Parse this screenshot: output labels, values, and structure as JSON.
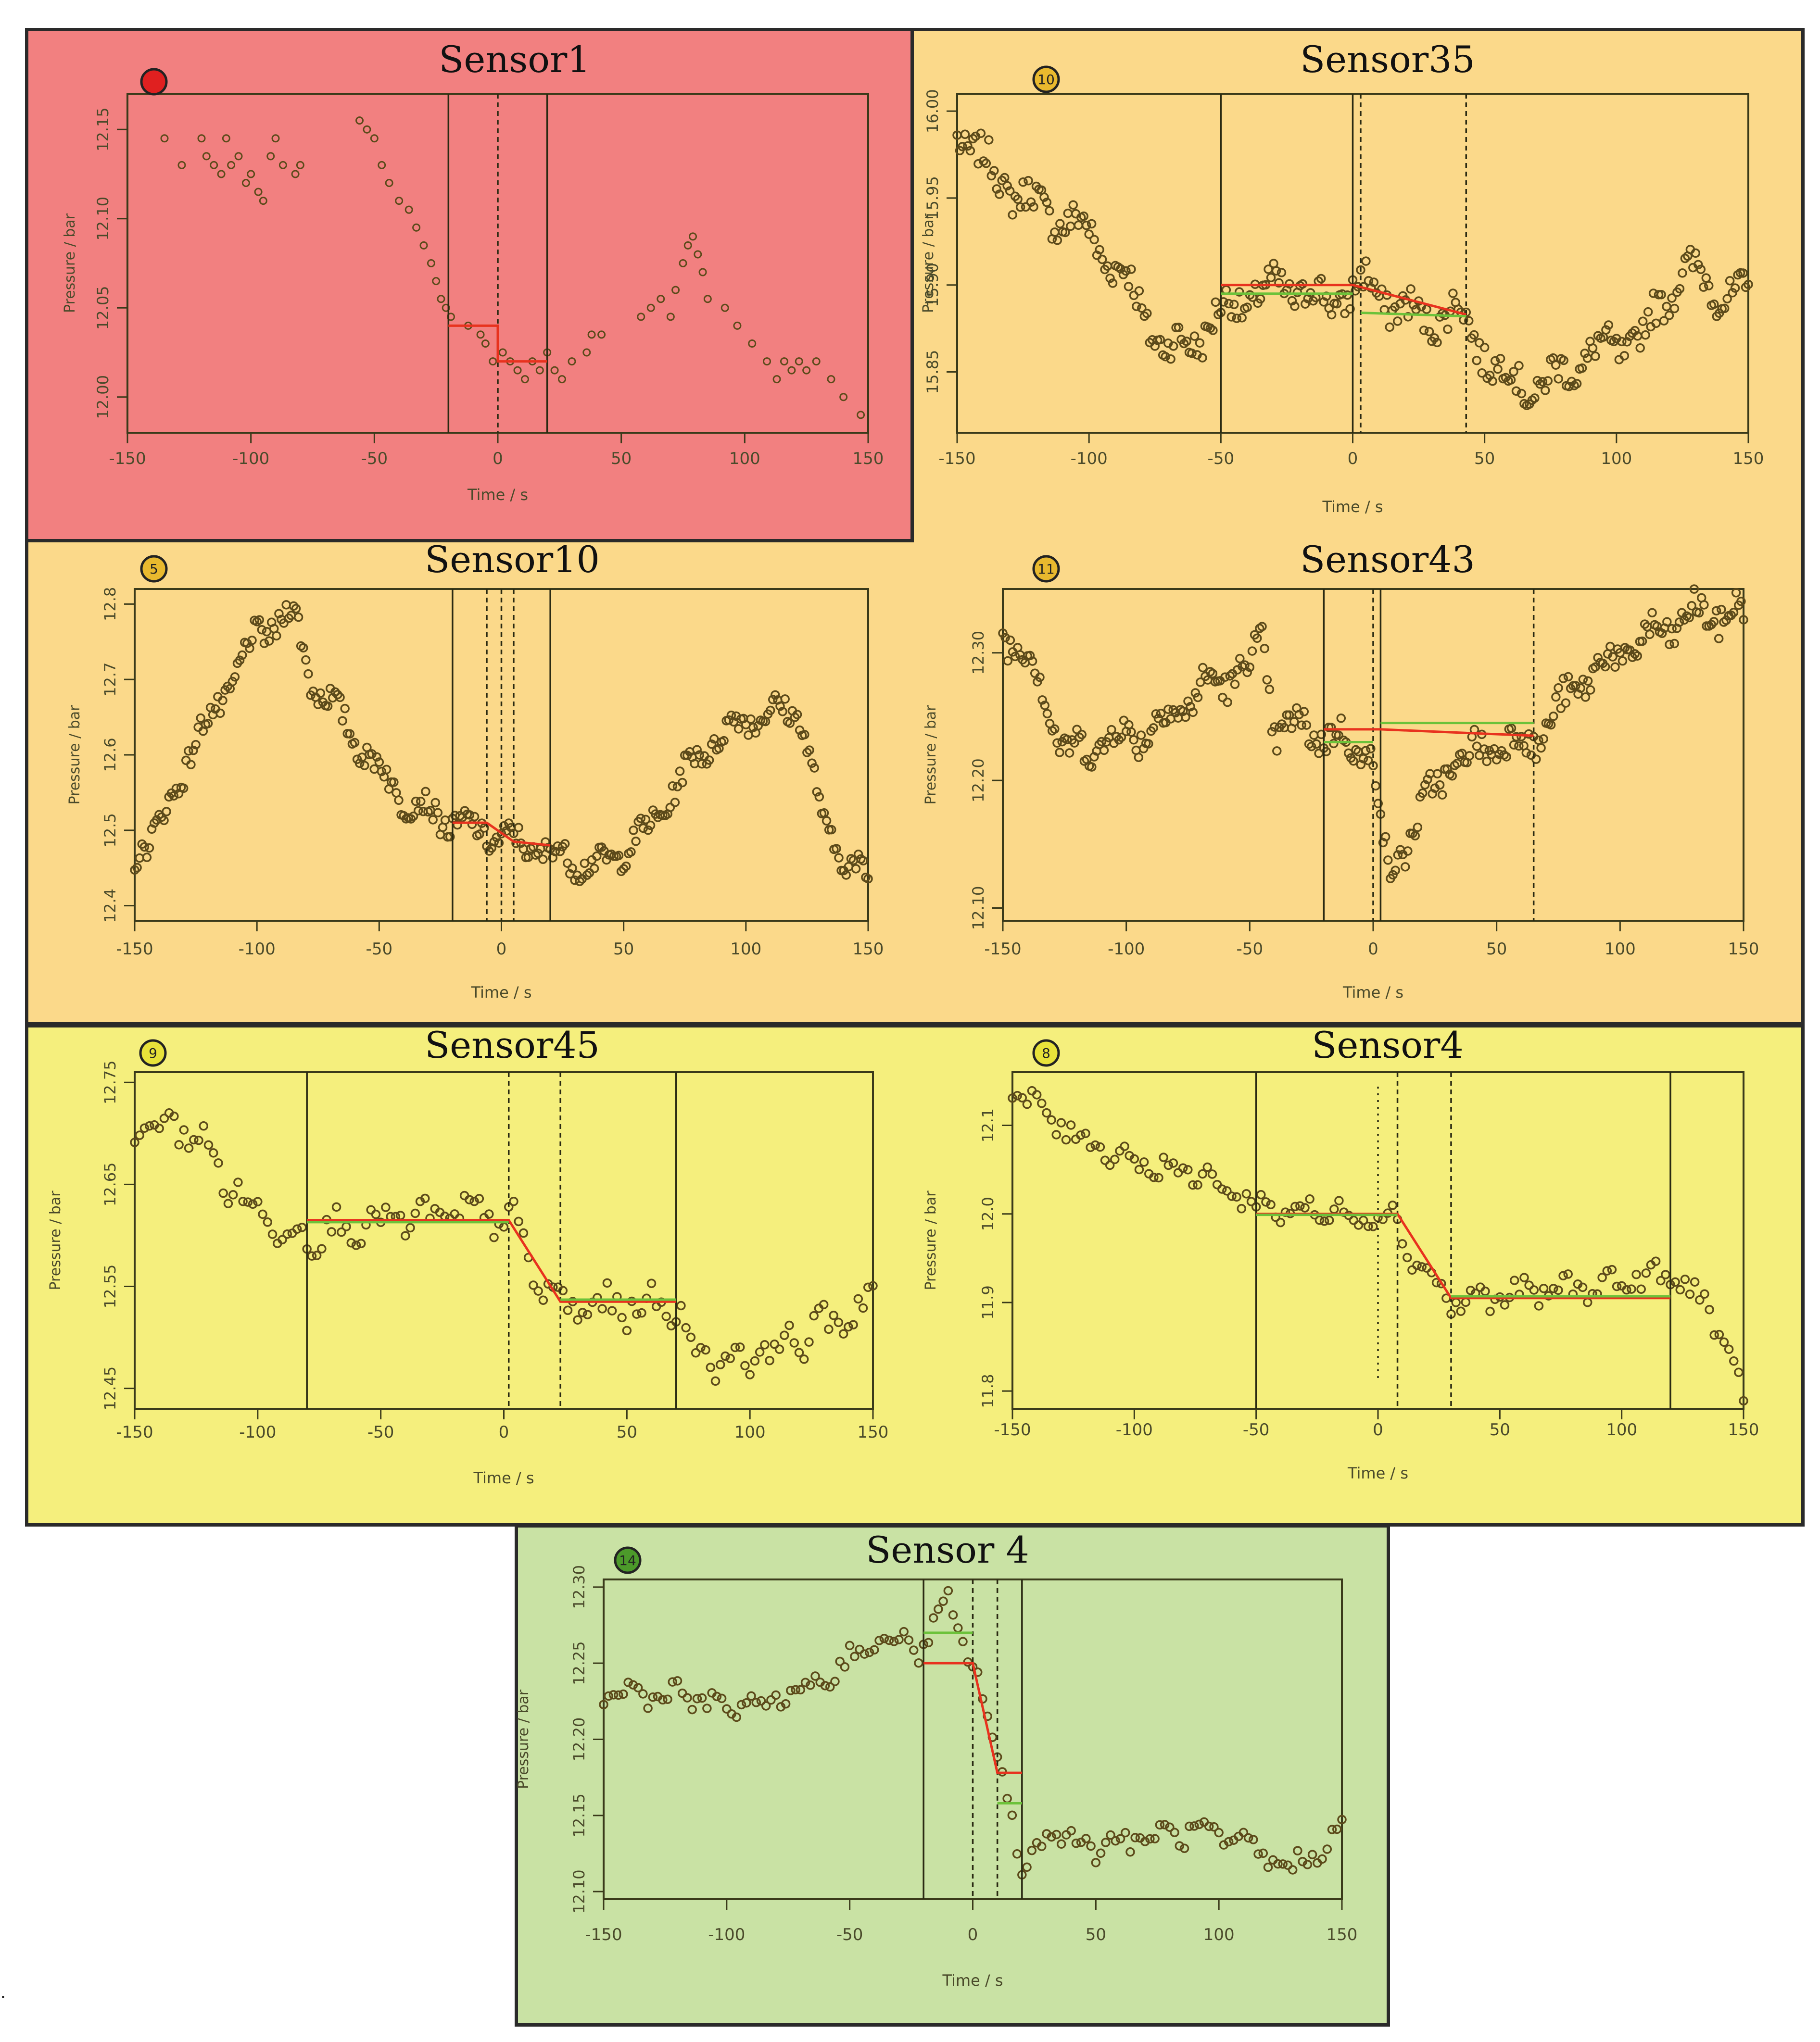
{
  "footnote": ".",
  "colors": {
    "red_zone": "#f28080",
    "orange_zone": "#fbd98a",
    "yellow_zone": "#f5ef7d",
    "green_zone": "#c9e2a4",
    "marker": "#5c4a1a",
    "fit_red": "#e8321e",
    "fit_green": "#6cc23a"
  },
  "chart_data": [
    {
      "type": "scatter",
      "title": "Sensor1",
      "badge": "",
      "badge_color": "#e02020",
      "xlabel": "Time / s",
      "ylabel": "Pressure / bar",
      "xlim": [
        -150,
        150
      ],
      "ylim": [
        11.98,
        12.17
      ],
      "xticks": [
        -150,
        -100,
        -50,
        0,
        50,
        100,
        150
      ],
      "yticks": [
        "12.00",
        "12.05",
        "12.10",
        "12.15"
      ],
      "points": [
        [
          -135,
          12.145
        ],
        [
          -128,
          12.13
        ],
        [
          -120,
          12.145
        ],
        [
          -118,
          12.135
        ],
        [
          -115,
          12.13
        ],
        [
          -112,
          12.125
        ],
        [
          -110,
          12.145
        ],
        [
          -108,
          12.13
        ],
        [
          -105,
          12.135
        ],
        [
          -102,
          12.12
        ],
        [
          -100,
          12.125
        ],
        [
          -97,
          12.115
        ],
        [
          -95,
          12.11
        ],
        [
          -92,
          12.135
        ],
        [
          -90,
          12.145
        ],
        [
          -87,
          12.13
        ],
        [
          -82,
          12.125
        ],
        [
          -80,
          12.13
        ],
        [
          -56,
          12.155
        ],
        [
          -53,
          12.15
        ],
        [
          -50,
          12.145
        ],
        [
          -47,
          12.13
        ],
        [
          -44,
          12.12
        ],
        [
          -40,
          12.11
        ],
        [
          -36,
          12.105
        ],
        [
          -33,
          12.095
        ],
        [
          -30,
          12.085
        ],
        [
          -27,
          12.075
        ],
        [
          -25,
          12.065
        ],
        [
          -23,
          12.055
        ],
        [
          -21,
          12.05
        ],
        [
          -19,
          12.045
        ],
        [
          -12,
          12.04
        ],
        [
          -7,
          12.035
        ],
        [
          -5,
          12.03
        ],
        [
          -2,
          12.02
        ],
        [
          2,
          12.025
        ],
        [
          5,
          12.02
        ],
        [
          8,
          12.015
        ],
        [
          11,
          12.01
        ],
        [
          14,
          12.02
        ],
        [
          17,
          12.015
        ],
        [
          20,
          12.025
        ],
        [
          23,
          12.015
        ],
        [
          26,
          12.01
        ],
        [
          30,
          12.02
        ],
        [
          36,
          12.025
        ],
        [
          38,
          12.035
        ],
        [
          42,
          12.035
        ],
        [
          58,
          12.045
        ],
        [
          62,
          12.05
        ],
        [
          66,
          12.055
        ],
        [
          70,
          12.045
        ],
        [
          72,
          12.06
        ],
        [
          75,
          12.075
        ],
        [
          77,
          12.085
        ],
        [
          79,
          12.09
        ],
        [
          81,
          12.08
        ],
        [
          83,
          12.07
        ],
        [
          85,
          12.055
        ],
        [
          92,
          12.05
        ],
        [
          97,
          12.04
        ],
        [
          103,
          12.03
        ],
        [
          109,
          12.02
        ],
        [
          113,
          12.01
        ],
        [
          116,
          12.02
        ],
        [
          119,
          12.015
        ],
        [
          122,
          12.02
        ],
        [
          125,
          12.015
        ],
        [
          129,
          12.02
        ],
        [
          135,
          12.01
        ],
        [
          140,
          12.0
        ],
        [
          147,
          11.99
        ]
      ],
      "vlines": [
        {
          "x": -20,
          "style": "solid"
        },
        {
          "x": 20,
          "style": "solid"
        },
        {
          "x": 0,
          "style": "dashed"
        }
      ],
      "fits": [
        {
          "color": "red",
          "points": [
            [
              -20,
              12.04
            ],
            [
              0,
              12.04
            ],
            [
              0,
              12.02
            ],
            [
              20,
              12.02
            ]
          ]
        }
      ]
    },
    {
      "type": "scatter",
      "title": "Sensor35",
      "badge": "10",
      "badge_color": "#e9b92e",
      "xlabel": "Time / s",
      "ylabel": "Pressure / bar",
      "xlim": [
        -150,
        150
      ],
      "ylim": [
        15.815,
        16.01
      ],
      "xticks": [
        -150,
        -100,
        -50,
        0,
        50,
        100,
        150
      ],
      "yticks": [
        "15.85",
        "15.90",
        "15.95",
        "16.00"
      ],
      "vlines": [
        {
          "x": -50,
          "style": "solid"
        },
        {
          "x": 0,
          "style": "solid"
        },
        {
          "x": 3,
          "style": "dashed"
        },
        {
          "x": 43,
          "style": "dashed"
        }
      ],
      "fits": [
        {
          "color": "red",
          "points": [
            [
              -50,
              15.9
            ],
            [
              0,
              15.9
            ],
            [
              43,
              15.883
            ]
          ]
        },
        {
          "color": "green",
          "points": [
            [
              -50,
              15.895
            ],
            [
              0,
              15.895
            ]
          ]
        },
        {
          "color": "green",
          "points": [
            [
              3,
              15.884
            ],
            [
              43,
              15.882
            ]
          ]
        }
      ]
    },
    {
      "type": "scatter",
      "title": "Sensor10",
      "badge": "5",
      "badge_color": "#e9b92e",
      "xlabel": "Time / s",
      "ylabel": "Pressure / bar",
      "xlim": [
        -150,
        150
      ],
      "ylim": [
        12.38,
        12.82
      ],
      "xticks": [
        -150,
        -100,
        -50,
        0,
        50,
        100,
        150
      ],
      "yticks": [
        "12.4",
        "12.5",
        "12.6",
        "12.7",
        "12.8"
      ],
      "vlines": [
        {
          "x": -20,
          "style": "solid"
        },
        {
          "x": 20,
          "style": "solid"
        },
        {
          "x": -6,
          "style": "dashed"
        },
        {
          "x": 5,
          "style": "dashed"
        },
        {
          "x": 0,
          "style": "dashed"
        }
      ],
      "fits": [
        {
          "color": "red",
          "points": [
            [
              -20,
              12.51
            ],
            [
              -6,
              12.51
            ],
            [
              5,
              12.485
            ],
            [
              20,
              12.48
            ]
          ]
        }
      ]
    },
    {
      "type": "scatter",
      "title": "Sensor43",
      "badge": "11",
      "badge_color": "#e9b92e",
      "xlabel": "Time / s",
      "ylabel": "Pressure / bar",
      "xlim": [
        -150,
        150
      ],
      "ylim": [
        12.09,
        12.35
      ],
      "xticks": [
        -150,
        -100,
        -50,
        0,
        50,
        100,
        150
      ],
      "yticks": [
        "12.10",
        "12.20",
        "12.30"
      ],
      "vlines": [
        {
          "x": -20,
          "style": "solid"
        },
        {
          "x": 3,
          "style": "solid"
        },
        {
          "x": 0,
          "style": "dashed"
        },
        {
          "x": 65,
          "style": "dashed"
        }
      ],
      "fits": [
        {
          "color": "red",
          "points": [
            [
              -20,
              12.24
            ],
            [
              3,
              12.24
            ],
            [
              65,
              12.235
            ]
          ]
        },
        {
          "color": "green",
          "points": [
            [
              3,
              12.245
            ],
            [
              65,
              12.245
            ]
          ]
        },
        {
          "color": "green",
          "points": [
            [
              -20,
              12.23
            ],
            [
              0,
              12.23
            ]
          ]
        }
      ]
    },
    {
      "type": "scatter",
      "title": "Sensor45",
      "badge": "9",
      "badge_color": "#e8e23a",
      "xlabel": "Time / s",
      "ylabel": "Pressure / bar",
      "xlim": [
        -150,
        150
      ],
      "ylim": [
        12.43,
        12.76
      ],
      "xticks": [
        -150,
        -100,
        -50,
        0,
        50,
        100,
        150
      ],
      "yticks": [
        "12.45",
        "12.55",
        "12.65",
        "12.75"
      ],
      "vlines": [
        {
          "x": -80,
          "style": "solid"
        },
        {
          "x": 70,
          "style": "solid"
        },
        {
          "x": 2,
          "style": "dashed"
        },
        {
          "x": 23,
          "style": "dashed"
        }
      ],
      "fits": [
        {
          "color": "red",
          "points": [
            [
              -80,
              12.615
            ],
            [
              2,
              12.615
            ],
            [
              23,
              12.535
            ],
            [
              70,
              12.535
            ]
          ]
        },
        {
          "color": "green",
          "points": [
            [
              -80,
              12.613
            ],
            [
              2,
              12.613
            ]
          ]
        },
        {
          "color": "green",
          "points": [
            [
              23,
              12.537
            ],
            [
              70,
              12.537
            ]
          ]
        }
      ]
    },
    {
      "type": "scatter",
      "title": "Sensor4",
      "badge": "8",
      "badge_color": "#e8e23a",
      "xlabel": "Time / s",
      "ylabel": "Pressure / bar",
      "xlim": [
        -150,
        150
      ],
      "ylim": [
        11.78,
        12.16
      ],
      "xticks": [
        -150,
        -100,
        -50,
        0,
        50,
        100,
        150
      ],
      "yticks": [
        "11.8",
        "11.9",
        "12.0",
        "12.1"
      ],
      "vlines": [
        {
          "x": -50,
          "style": "solid"
        },
        {
          "x": 120,
          "style": "solid"
        },
        {
          "x": 8,
          "style": "dashed"
        },
        {
          "x": 30,
          "style": "dashed"
        },
        {
          "x": 0,
          "style": "dotted"
        }
      ],
      "fits": [
        {
          "color": "red",
          "points": [
            [
              -50,
              12.0
            ],
            [
              8,
              12.0
            ],
            [
              30,
              11.905
            ],
            [
              120,
              11.905
            ]
          ]
        },
        {
          "color": "green",
          "points": [
            [
              -50,
              11.999
            ],
            [
              8,
              11.999
            ]
          ]
        },
        {
          "color": "green",
          "points": [
            [
              30,
              11.907
            ],
            [
              120,
              11.907
            ]
          ]
        }
      ]
    },
    {
      "type": "scatter",
      "title": "Sensor 4",
      "badge": "14",
      "badge_color": "#4c9a2a",
      "xlabel": "Time / s",
      "ylabel": "Pressure / bar",
      "xlim": [
        -150,
        150
      ],
      "ylim": [
        12.095,
        12.305
      ],
      "xticks": [
        -150,
        -100,
        -50,
        0,
        50,
        100,
        150
      ],
      "yticks": [
        "12.10",
        "12.15",
        "12.20",
        "12.25",
        "12.30"
      ],
      "vlines": [
        {
          "x": -20,
          "style": "solid"
        },
        {
          "x": 20,
          "style": "solid"
        },
        {
          "x": 0,
          "style": "dashed"
        },
        {
          "x": 10,
          "style": "dashed"
        }
      ],
      "fits": [
        {
          "color": "red",
          "points": [
            [
              -20,
              12.25
            ],
            [
              0,
              12.25
            ],
            [
              10,
              12.178
            ],
            [
              20,
              12.178
            ]
          ]
        },
        {
          "color": "green",
          "points": [
            [
              -20,
              12.27
            ],
            [
              0,
              12.27
            ]
          ]
        },
        {
          "color": "green",
          "points": [
            [
              10,
              12.158
            ],
            [
              20,
              12.158
            ]
          ]
        }
      ]
    }
  ]
}
